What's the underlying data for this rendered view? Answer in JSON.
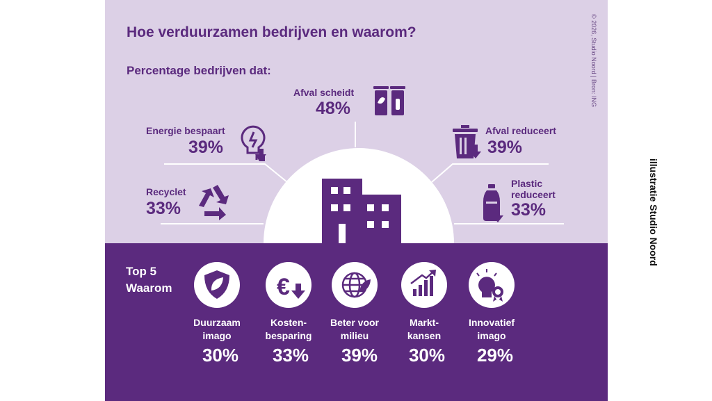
{
  "title": "Hoe verduurzamen bedrijven en waarom?",
  "subtitle": "Percentage bedrijven dat:",
  "copyright": "© 2026, Studio Noord | Bron: ING",
  "credit": "illustratie Studio Noord",
  "colors": {
    "light_bg": "#dcd0e6",
    "dark_bg": "#5b2a7e",
    "accent": "#5b2a7e",
    "white": "#ffffff"
  },
  "actions": [
    {
      "label": "Afval scheidt",
      "value": "48%",
      "icon": "waste-bins-icon"
    },
    {
      "label": "Energie bespaart",
      "value": "39%",
      "icon": "energy-saving-bulb-icon"
    },
    {
      "label": "Afval reduceert",
      "value": "39%",
      "icon": "trash-can-reduce-icon"
    },
    {
      "label": "Recyclet",
      "value": "33%",
      "icon": "recycle-icon"
    },
    {
      "label_line1": "Plastic",
      "label_line2": "reduceert",
      "value": "33%",
      "icon": "plastic-bottle-reduce-icon"
    }
  ],
  "reasons_title_line1": "Top 5",
  "reasons_title_line2": "Waarom",
  "reasons": [
    {
      "line1": "Duurzaam",
      "line2": "imago",
      "value": "30%",
      "icon": "leaf-shield-icon"
    },
    {
      "line1": "Kosten-",
      "line2": "besparing",
      "value": "33%",
      "icon": "euro-down-icon"
    },
    {
      "line1": "Beter voor",
      "line2": "milieu",
      "value": "39%",
      "icon": "globe-leaf-icon"
    },
    {
      "line1": "Markt-",
      "line2": "kansen",
      "value": "30%",
      "icon": "growth-chart-icon"
    },
    {
      "line1": "Innovatief",
      "line2": "imago",
      "value": "29%",
      "icon": "lightbulb-award-icon"
    }
  ]
}
